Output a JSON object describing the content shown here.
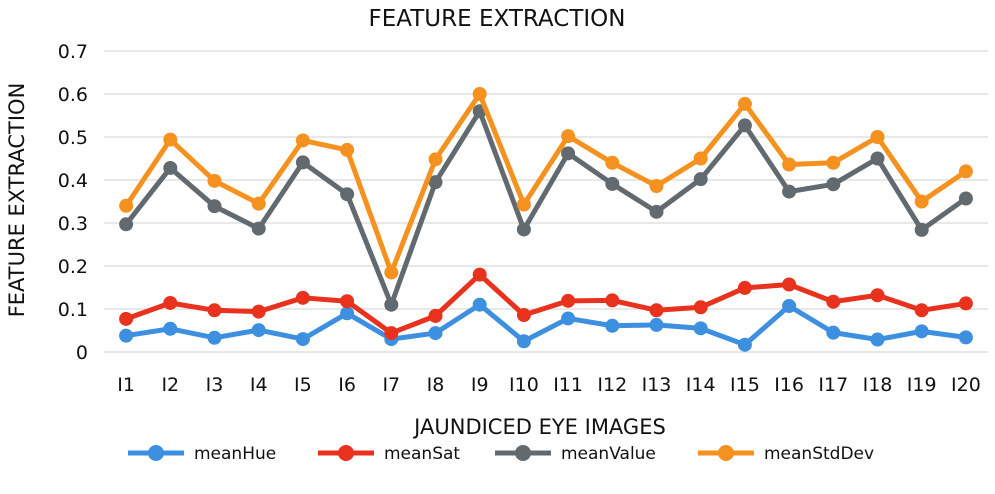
{
  "chart_data": {
    "type": "line",
    "title": "FEATURE  EXTRACTION",
    "xlabel": "JAUNDICED EYE IMAGES",
    "ylabel": "FEATURE EXTRACTION",
    "ylim": [
      0,
      0.7
    ],
    "yticks": [
      0,
      0.1,
      0.2,
      0.3,
      0.4,
      0.5,
      0.6,
      0.7
    ],
    "ytick_labels": [
      "0",
      "0.1",
      "0.2",
      "0.3",
      "0.4",
      "0.5",
      "0.6",
      "0.7"
    ],
    "grid": true,
    "legend_position": "bottom",
    "categories": [
      "I1",
      "I2",
      "I3",
      "I4",
      "I5",
      "I6",
      "I7",
      "I8",
      "I9",
      "I10",
      "I11",
      "I12",
      "I13",
      "I14",
      "I15",
      "I16",
      "I17",
      "I18",
      "I19",
      "I20"
    ],
    "series": [
      {
        "name": "meanHue",
        "color": "#3d8fe0",
        "values": [
          0.038,
          0.054,
          0.033,
          0.051,
          0.03,
          0.09,
          0.03,
          0.044,
          0.11,
          0.025,
          0.078,
          0.061,
          0.063,
          0.055,
          0.017,
          0.107,
          0.045,
          0.029,
          0.048,
          0.034
        ]
      },
      {
        "name": "meanSat",
        "color": "#e8321e",
        "values": [
          0.077,
          0.114,
          0.097,
          0.094,
          0.126,
          0.118,
          0.044,
          0.084,
          0.18,
          0.086,
          0.119,
          0.12,
          0.097,
          0.104,
          0.149,
          0.157,
          0.117,
          0.132,
          0.097,
          0.113
        ]
      },
      {
        "name": "meanValue",
        "color": "#626a70",
        "values": [
          0.297,
          0.428,
          0.339,
          0.287,
          0.441,
          0.367,
          0.11,
          0.395,
          0.56,
          0.285,
          0.462,
          0.391,
          0.326,
          0.402,
          0.527,
          0.373,
          0.39,
          0.45,
          0.284,
          0.357
        ]
      },
      {
        "name": "meanStdDev",
        "color": "#f5911e",
        "values": [
          0.34,
          0.494,
          0.398,
          0.345,
          0.492,
          0.47,
          0.185,
          0.448,
          0.6,
          0.343,
          0.502,
          0.44,
          0.386,
          0.45,
          0.577,
          0.436,
          0.44,
          0.5,
          0.35,
          0.42
        ]
      }
    ]
  }
}
